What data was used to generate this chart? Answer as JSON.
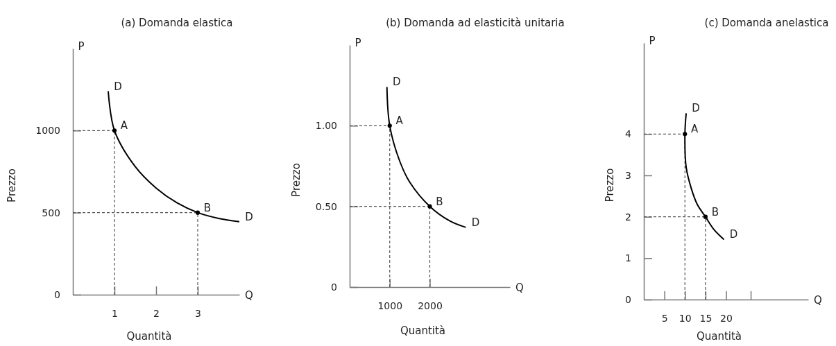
{
  "chart_data": [
    {
      "type": "line",
      "title": "(a)  Domanda elastica",
      "xlabel": "Quantità",
      "ylabel": "Prezzo",
      "xlim": [
        0,
        4
      ],
      "ylim": [
        0,
        1500
      ],
      "xticks": [
        1,
        2,
        3
      ],
      "yticks": [
        0,
        500,
        1000
      ],
      "grid": false,
      "series": [
        {
          "color": "#000000",
          "marker": "none",
          "x": [
            0.85,
            1,
            1.5,
            2,
            2.5,
            3,
            3.5,
            4
          ],
          "values": [
            1240,
            1000,
            780,
            650,
            560,
            500,
            465,
            445
          ]
        },
        {
          "type": "scatter",
          "color": "#000000",
          "marker": "circle",
          "x": [
            1,
            3
          ],
          "values": [
            1000,
            500
          ]
        }
      ],
      "ref_lines": [
        {
          "axis": "x",
          "value": 1,
          "line_style": "dashed"
        },
        {
          "axis": "x",
          "value": 3,
          "line_style": "dashed"
        },
        {
          "axis": "y",
          "value": 1000,
          "line_style": "dashed"
        },
        {
          "axis": "y",
          "value": 500,
          "line_style": "dashed"
        }
      ],
      "annotations": [
        {
          "text": "D",
          "x": 0.85,
          "y": 1240
        },
        {
          "text": "D",
          "x": 4,
          "y": 445
        },
        {
          "text": "A",
          "x": 1,
          "y": 1000
        },
        {
          "text": "B",
          "x": 3,
          "y": 500
        },
        "P",
        "Q"
      ]
    },
    {
      "type": "line",
      "title": "(b)  Domanda ad elasticità unitaria",
      "xlabel": "Quantità",
      "ylabel": "Prezzo",
      "xlim": [
        0,
        4000
      ],
      "ylim": [
        0,
        1.5
      ],
      "xticks": [
        1000,
        2000
      ],
      "yticks": [
        {
          "value": 0,
          "label": "0"
        },
        {
          "value": 0.5,
          "label": "0.50"
        },
        {
          "value": 1,
          "label": "1.00"
        }
      ],
      "grid": false,
      "series": [
        {
          "color": "#000000",
          "marker": "none",
          "x": [
            930,
            1000,
            1250,
            1500,
            2000,
            2500,
            2900
          ],
          "values": [
            1.24,
            1.0,
            0.78,
            0.65,
            0.5,
            0.41,
            0.37
          ]
        },
        {
          "type": "scatter",
          "color": "#000000",
          "marker": "circle",
          "x": [
            1000,
            2000
          ],
          "values": [
            1.0,
            0.5
          ]
        }
      ],
      "ref_lines": [
        {
          "axis": "x",
          "value": 1000,
          "line_style": "dashed"
        },
        {
          "axis": "x",
          "value": 2000,
          "line_style": "dashed"
        },
        {
          "axis": "y",
          "value": 1.0,
          "line_style": "dashed"
        },
        {
          "axis": "y",
          "value": 0.5,
          "line_style": "dashed"
        }
      ],
      "annotations": [
        {
          "text": "D",
          "x": 930,
          "y": 1.24
        },
        {
          "text": "D",
          "x": 2900,
          "y": 0.37
        },
        {
          "text": "A",
          "x": 1000,
          "y": 1.0
        },
        {
          "text": "B",
          "x": 2000,
          "y": 0.5
        },
        "P",
        "Q"
      ]
    },
    {
      "type": "line",
      "title": "(c)  Domanda anelastica",
      "xlabel": "Quantità",
      "ylabel": "Prezzo",
      "xlim": [
        0,
        40
      ],
      "ylim": [
        0,
        6.2
      ],
      "xticks": [
        5,
        10,
        15,
        20,
        {
          "value": 26,
          "label": null
        }
      ],
      "yticks": [
        0,
        1,
        2,
        3,
        4
      ],
      "grid": false,
      "series": [
        {
          "color": "#000000",
          "marker": "none",
          "x": [
            10.3,
            10,
            10.3,
            11.5,
            13,
            15,
            17,
            19.5
          ],
          "values": [
            4.5,
            4,
            3.2,
            2.7,
            2.3,
            2,
            1.7,
            1.45
          ]
        },
        {
          "type": "scatter",
          "color": "#000000",
          "marker": "circle",
          "x": [
            10,
            15
          ],
          "values": [
            4,
            2
          ]
        }
      ],
      "ref_lines": [
        {
          "axis": "x",
          "value": 10,
          "line_style": "dashed"
        },
        {
          "axis": "x",
          "value": 15,
          "line_style": "dashed"
        },
        {
          "axis": "y",
          "value": 4,
          "line_style": "dashed"
        },
        {
          "axis": "y",
          "value": 2,
          "line_style": "dashed"
        }
      ],
      "annotations": [
        {
          "text": "D",
          "x": 10.3,
          "y": 4.5
        },
        {
          "text": "D",
          "x": 19.5,
          "y": 1.45
        },
        {
          "text": "A",
          "x": 10,
          "y": 4
        },
        {
          "text": "B",
          "x": 15,
          "y": 2
        },
        "P",
        "Q"
      ]
    }
  ]
}
